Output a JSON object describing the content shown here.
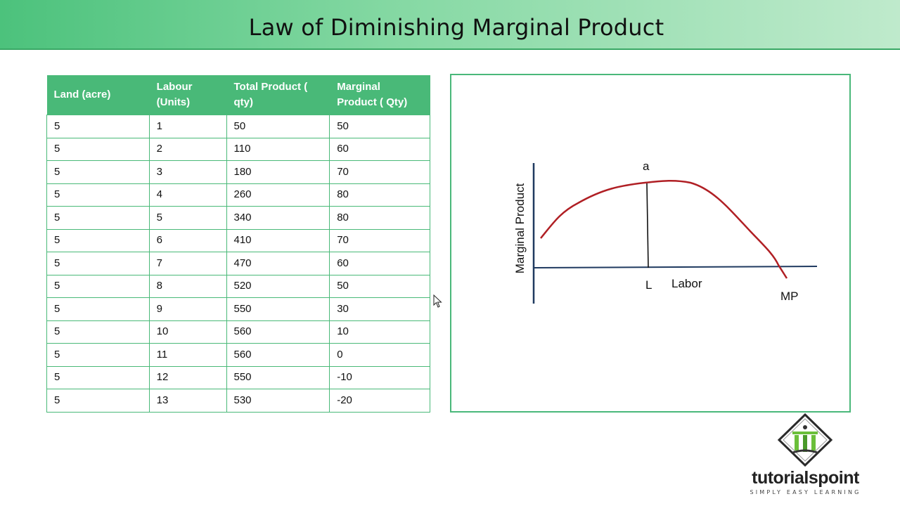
{
  "slide": {
    "title": "Law of Diminishing Marginal Product"
  },
  "table": {
    "headers": {
      "land": "Land (acre)",
      "labour_line1": "Labour",
      "labour_line2": "(Units)",
      "total_line1": "Total Product (",
      "total_line2": "qty)",
      "marginal_line1": "Marginal",
      "marginal_line2": "Product ( Qty)"
    },
    "rows": [
      [
        "5",
        "1",
        "50",
        "50"
      ],
      [
        "5",
        "2",
        "110",
        "60"
      ],
      [
        "5",
        "3",
        "180",
        "70"
      ],
      [
        "5",
        "4",
        "260",
        "80"
      ],
      [
        "5",
        "5",
        "340",
        "80"
      ],
      [
        "5",
        "6",
        "410",
        "70"
      ],
      [
        "5",
        "7",
        "470",
        "60"
      ],
      [
        "5",
        "8",
        "520",
        "50"
      ],
      [
        "5",
        "9",
        "550",
        "30"
      ],
      [
        "5",
        "10",
        "560",
        "10"
      ],
      [
        "5",
        "11",
        "560",
        "0"
      ],
      [
        "5",
        "12",
        "550",
        "-10"
      ],
      [
        "5",
        "13",
        "530",
        "-20"
      ]
    ]
  },
  "chart_data": {
    "type": "line",
    "ylabel": "Marginal Product",
    "xlabel": "Labor",
    "point_label": "a",
    "x_marker_label": "L",
    "curve_label": "MP",
    "curve_color": "#b01f24",
    "axis_color": "#1f3a60"
  },
  "logo": {
    "word_part1": "tutorials",
    "word_part2": "point",
    "tagline": "SIMPLY EASY LEARNING"
  }
}
